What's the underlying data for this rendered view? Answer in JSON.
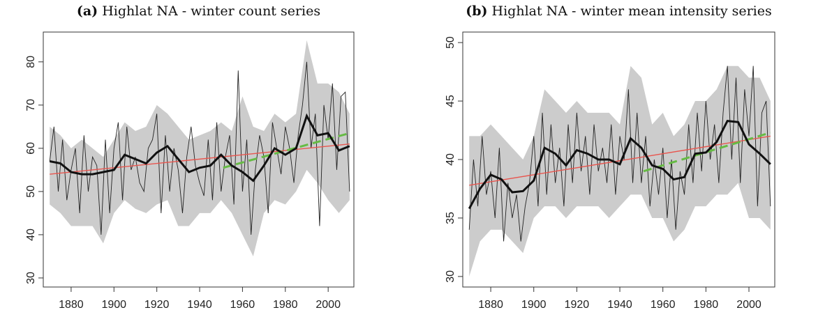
{
  "chart_data": [
    {
      "type": "line",
      "panel_label": "(a)",
      "title": "Highlat NA - winter count series",
      "xlim": [
        1867,
        2012
      ],
      "ylim": [
        27.9,
        86.9
      ],
      "xticks": [
        1880,
        1900,
        1920,
        1940,
        1960,
        1980,
        2000
      ],
      "yticks": [
        30,
        40,
        50,
        60,
        70,
        80
      ],
      "x": [
        1870,
        1872,
        1874,
        1876,
        1878,
        1880,
        1882,
        1884,
        1886,
        1888,
        1890,
        1892,
        1894,
        1896,
        1898,
        1900,
        1902,
        1904,
        1906,
        1908,
        1910,
        1912,
        1914,
        1916,
        1918,
        1920,
        1922,
        1924,
        1926,
        1928,
        1930,
        1932,
        1934,
        1936,
        1938,
        1940,
        1942,
        1944,
        1946,
        1948,
        1950,
        1952,
        1954,
        1956,
        1958,
        1960,
        1962,
        1964,
        1966,
        1968,
        1970,
        1972,
        1974,
        1976,
        1978,
        1980,
        1982,
        1984,
        1986,
        1988,
        1990,
        1992,
        1994,
        1996,
        1998,
        2000,
        2002,
        2004,
        2006,
        2008,
        2010
      ],
      "values": [
        57,
        65,
        50,
        62,
        48,
        55,
        60,
        45,
        63,
        50,
        58,
        56,
        40,
        62,
        45,
        60,
        66,
        48,
        65,
        55,
        58,
        52,
        50,
        60,
        62,
        68,
        45,
        63,
        50,
        60,
        55,
        45,
        58,
        65,
        56,
        52,
        49,
        62,
        48,
        66,
        50,
        58,
        63,
        47,
        78,
        50,
        62,
        40,
        55,
        63,
        58,
        45,
        66,
        60,
        54,
        65,
        60,
        52,
        63,
        70,
        80,
        60,
        68,
        42,
        70,
        62,
        75,
        55,
        72,
        73,
        50
      ],
      "color": "#222222",
      "band": {
        "x": [
          1870,
          1875,
          1880,
          1885,
          1890,
          1895,
          1900,
          1905,
          1910,
          1915,
          1920,
          1925,
          1930,
          1935,
          1940,
          1945,
          1950,
          1955,
          1960,
          1965,
          1970,
          1975,
          1980,
          1985,
          1990,
          1995,
          2000,
          2005,
          2010
        ],
        "upper": [
          65,
          63,
          60,
          62,
          60,
          58,
          62,
          66,
          64,
          65,
          70,
          68,
          65,
          62,
          63,
          64,
          66,
          64,
          72,
          65,
          64,
          68,
          66,
          68,
          85,
          75,
          75,
          73,
          68
        ],
        "lower": [
          47,
          45,
          42,
          42,
          42,
          38,
          45,
          48,
          46,
          45,
          47,
          48,
          42,
          42,
          45,
          45,
          48,
          45,
          40,
          35,
          45,
          48,
          47,
          50,
          55,
          52,
          48,
          45,
          48
        ],
        "color": "#cccccc"
      },
      "smooth": {
        "x": [
          1870,
          1875,
          1880,
          1885,
          1890,
          1895,
          1900,
          1905,
          1910,
          1915,
          1920,
          1925,
          1930,
          1935,
          1940,
          1945,
          1950,
          1955,
          1960,
          1965,
          1970,
          1975,
          1980,
          1985,
          1990,
          1995,
          2000,
          2005,
          2010
        ],
        "values": [
          57,
          56.5,
          54.5,
          54,
          54,
          54.5,
          55,
          58.5,
          57.5,
          56.5,
          59,
          60.5,
          57.5,
          54.5,
          55.5,
          56,
          58.5,
          56,
          54.5,
          52.5,
          56,
          60,
          58.5,
          60,
          67.5,
          63,
          63.5,
          59.5,
          60.5
        ],
        "color": "#111111"
      },
      "trend": {
        "x": [
          1870,
          2010
        ],
        "values": [
          54,
          61
        ],
        "color": "#e8554e"
      },
      "recent_trend": {
        "x": [
          1951,
          2010
        ],
        "values": [
          55.5,
          63.5
        ],
        "color": "#66bb44"
      }
    },
    {
      "type": "line",
      "panel_label": "(b)",
      "title": "Highlat NA - winter mean intensity series",
      "xlim": [
        1867,
        2012
      ],
      "ylim": [
        29.1,
        50.9
      ],
      "xticks": [
        1880,
        1900,
        1920,
        1940,
        1960,
        1980,
        2000
      ],
      "yticks": [
        30,
        35,
        40,
        45,
        50
      ],
      "x": [
        1870,
        1872,
        1874,
        1876,
        1878,
        1880,
        1882,
        1884,
        1886,
        1888,
        1890,
        1892,
        1894,
        1896,
        1898,
        1900,
        1902,
        1904,
        1906,
        1908,
        1910,
        1912,
        1914,
        1916,
        1918,
        1920,
        1922,
        1924,
        1926,
        1928,
        1930,
        1932,
        1934,
        1936,
        1938,
        1940,
        1942,
        1944,
        1946,
        1948,
        1950,
        1952,
        1954,
        1956,
        1958,
        1960,
        1962,
        1964,
        1966,
        1968,
        1970,
        1972,
        1974,
        1976,
        1978,
        1980,
        1982,
        1984,
        1986,
        1988,
        1990,
        1992,
        1994,
        1996,
        1998,
        2000,
        2002,
        2004,
        2006,
        2008,
        2010
      ],
      "values": [
        34,
        40,
        36,
        42,
        37,
        39,
        35,
        41,
        33,
        38,
        35,
        37,
        33,
        36,
        38,
        42,
        36,
        44,
        37,
        43,
        38,
        41,
        36,
        43,
        38,
        44,
        39,
        42,
        37,
        43,
        39,
        41,
        38,
        43,
        37,
        42,
        40,
        46,
        38,
        44,
        38,
        42,
        36,
        40,
        37,
        41,
        35,
        40,
        34,
        39,
        37,
        43,
        38,
        44,
        39,
        45,
        40,
        43,
        38,
        44,
        48,
        40,
        47,
        38,
        46,
        42,
        48,
        36,
        44,
        45,
        36
      ],
      "color": "#222222",
      "band": {
        "x": [
          1870,
          1875,
          1880,
          1885,
          1890,
          1895,
          1900,
          1905,
          1910,
          1915,
          1920,
          1925,
          1930,
          1935,
          1940,
          1945,
          1950,
          1955,
          1960,
          1965,
          1970,
          1975,
          1980,
          1985,
          1990,
          1995,
          2000,
          2005,
          2010
        ],
        "upper": [
          42,
          42,
          43,
          42,
          41,
          40,
          42,
          46,
          45,
          44,
          45,
          44,
          44,
          44,
          43,
          48,
          47,
          43,
          44,
          42,
          43,
          45,
          45,
          46,
          48,
          48,
          47,
          47,
          45
        ],
        "lower": [
          30,
          33,
          34,
          34,
          33,
          32,
          35,
          36,
          36,
          35,
          36,
          36,
          36,
          35,
          36,
          37,
          37,
          35,
          35,
          33,
          34,
          36,
          36,
          37,
          37,
          38,
          35,
          35,
          34
        ],
        "color": "#cccccc"
      },
      "smooth": {
        "x": [
          1870,
          1875,
          1880,
          1885,
          1890,
          1895,
          1900,
          1905,
          1910,
          1915,
          1920,
          1925,
          1930,
          1935,
          1940,
          1945,
          1950,
          1955,
          1960,
          1965,
          1970,
          1975,
          1980,
          1985,
          1990,
          1995,
          2000,
          2005,
          2010
        ],
        "values": [
          35.8,
          37.5,
          38.7,
          38.3,
          37.2,
          37.3,
          38.2,
          41,
          40.5,
          39.5,
          40.8,
          40.5,
          40,
          40,
          39.6,
          41.8,
          41,
          39.5,
          39.2,
          38.3,
          38.5,
          40.5,
          40.6,
          41.5,
          43.3,
          43.2,
          41.3,
          40.5,
          39.6
        ],
        "color": "#111111"
      },
      "trend": {
        "x": [
          1870,
          2010
        ],
        "values": [
          37.8,
          42
        ],
        "color": "#e8554e"
      },
      "recent_trend": {
        "x": [
          1951,
          2010
        ],
        "values": [
          39,
          42.3
        ],
        "color": "#66bb44"
      }
    }
  ]
}
